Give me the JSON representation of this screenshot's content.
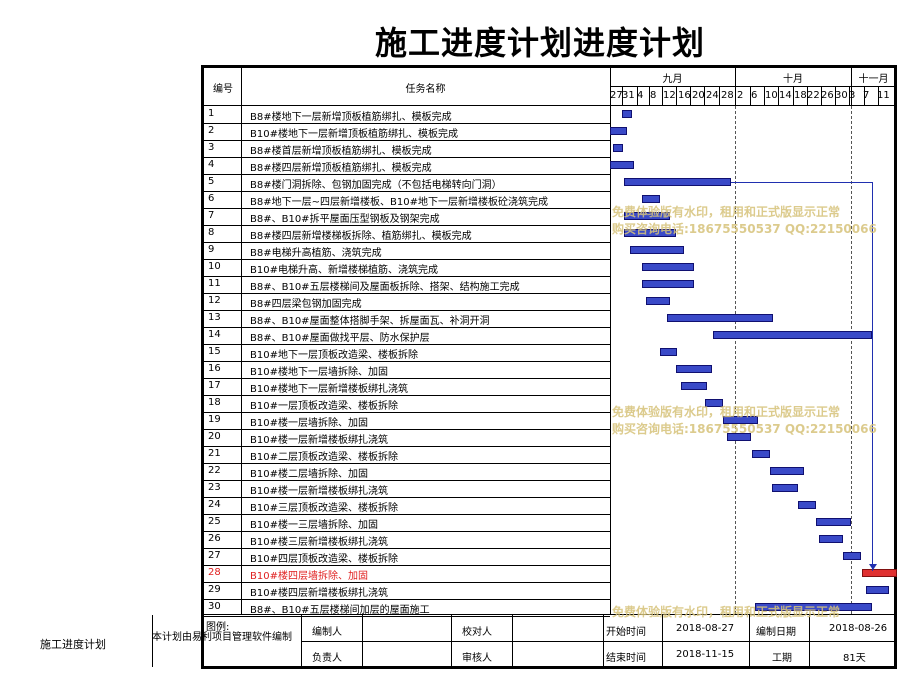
{
  "title": "施工进度计划进度计划",
  "header": {
    "col_num": "编号",
    "col_task": "任务名称",
    "months": [
      "九月",
      "十月",
      "十一月"
    ],
    "days": [
      "27",
      "31",
      "4",
      "8",
      "12",
      "16",
      "20",
      "24",
      "28",
      "2",
      "6",
      "10",
      "14",
      "18",
      "22",
      "26",
      "30",
      "3",
      "7",
      "11"
    ]
  },
  "tasks": [
    {
      "num": "1",
      "name": "B8#楼地下一层新增顶板植筋绑扎、模板完成"
    },
    {
      "num": "2",
      "name": "B10#楼地下一层新增顶板植筋绑扎、模板完成"
    },
    {
      "num": "3",
      "name": "B8#楼首层新增顶板植筋绑扎、模板完成"
    },
    {
      "num": "4",
      "name": "B8#楼四层新增顶板植筋绑扎、模板完成"
    },
    {
      "num": "5",
      "name": "B8#楼门洞拆除、包钢加固完成（不包括电梯转向门洞）"
    },
    {
      "num": "6",
      "name": "B8#地下一层~四层新增楼板、B10#地下一层新增楼板砼浇筑完成"
    },
    {
      "num": "7",
      "name": "B8#、B10#拆平屋面压型钢板及钢架完成"
    },
    {
      "num": "8",
      "name": "B8#楼四层新增楼梯板拆除、植筋绑扎、模板完成"
    },
    {
      "num": "9",
      "name": "B8#电梯升高植筋、浇筑完成"
    },
    {
      "num": "10",
      "name": "B10#电梯升高、新增楼梯植筋、浇筑完成"
    },
    {
      "num": "11",
      "name": "B8#、B10#五层楼梯间及屋面板拆除、搭架、结构施工完成"
    },
    {
      "num": "12",
      "name": "B8#四层梁包钢加固完成"
    },
    {
      "num": "13",
      "name": "B8#、B10#屋面整体搭脚手架、拆屋面瓦、补洞开洞"
    },
    {
      "num": "14",
      "name": "B8#、B10#屋面做找平层、防水保护层"
    },
    {
      "num": "15",
      "name": "B10#地下一层顶板改造梁、楼板拆除"
    },
    {
      "num": "16",
      "name": "B10#楼地下一层墙拆除、加固"
    },
    {
      "num": "17",
      "name": "B10#楼地下一层新增楼板绑扎浇筑"
    },
    {
      "num": "18",
      "name": "B10#一层顶板改造梁、楼板拆除"
    },
    {
      "num": "19",
      "name": "B10#楼一层墙拆除、加固"
    },
    {
      "num": "20",
      "name": "B10#楼一层新增楼板绑扎浇筑"
    },
    {
      "num": "21",
      "name": "B10#二层顶板改造梁、楼板拆除"
    },
    {
      "num": "22",
      "name": "B10#楼二层墙拆除、加固"
    },
    {
      "num": "23",
      "name": "B10#楼一层新增楼板绑扎浇筑"
    },
    {
      "num": "24",
      "name": "B10#三层顶板改造梁、楼板拆除"
    },
    {
      "num": "25",
      "name": "B10#楼一三层墙拆除、加固"
    },
    {
      "num": "26",
      "name": "B10#楼三层新增楼板绑扎浇筑"
    },
    {
      "num": "27",
      "name": "B10#四层顶板改造梁、楼板拆除"
    },
    {
      "num": "28",
      "name": "B10#楼四层墙拆除、加固",
      "highlight": true
    },
    {
      "num": "29",
      "name": "B10#楼四层新增楼板绑扎浇筑"
    },
    {
      "num": "30",
      "name": "B8#、B10#五层楼梯间加层的屋面施工"
    }
  ],
  "footer": {
    "legend_label": "图例:",
    "note": "本计划由易利项目管理软件编制",
    "editor_label": "编制人",
    "checker_label": "校对人",
    "start_label": "开始时间",
    "start_value": "2018-08-27",
    "made_label": "编制日期",
    "made_value": "2018-08-26",
    "owner_label": "负责人",
    "reviewer_label": "审核人",
    "end_label": "结束时间",
    "end_value": "2018-11-15",
    "duration_label": "工期",
    "duration_value": "81天"
  },
  "side_label": "施工进度计划",
  "watermark": {
    "line1": "免费体验版有水印，租用和正式版显示正常",
    "line2": "购买咨询电话:18675550537 QQ:22150066"
  },
  "colors": {
    "bar": "#3a4ac8",
    "highlight_bar": "#e03030",
    "highlight_text": "#e02020"
  }
}
